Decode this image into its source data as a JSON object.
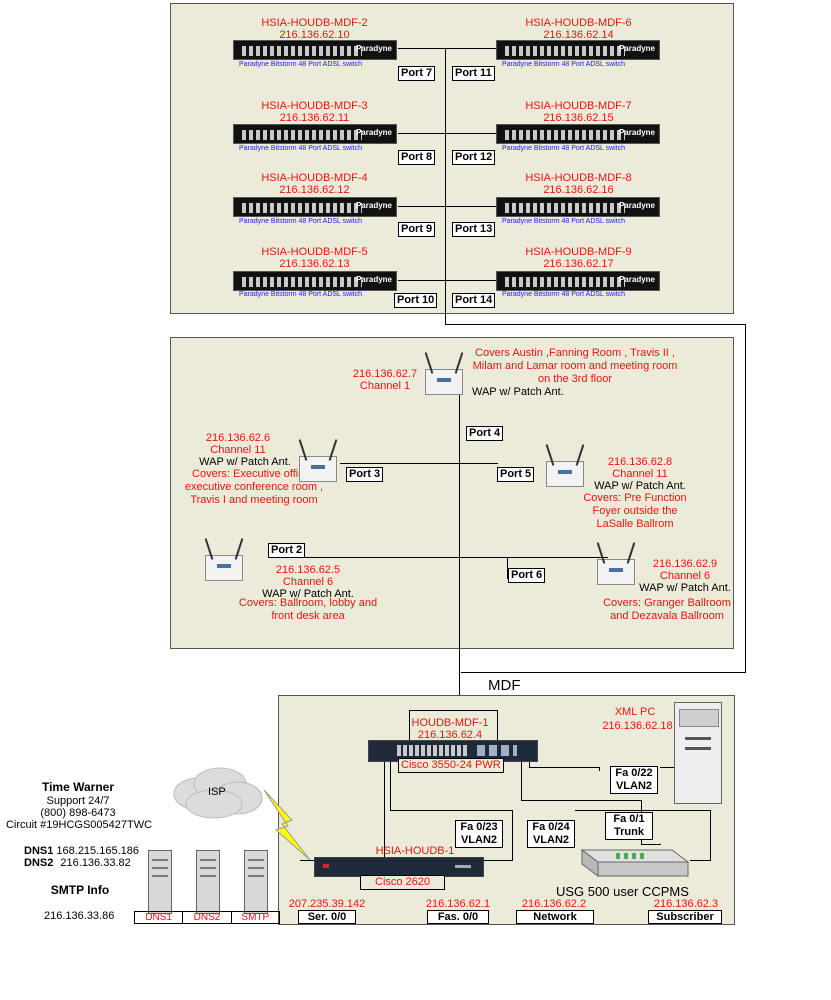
{
  "top_panel": {
    "switches": [
      {
        "name": "HSIA-HOUDB-MDF-2",
        "ip": "216.136.62.10",
        "port": "Port 7"
      },
      {
        "name": "HSIA-HOUDB-MDF-3",
        "ip": "216.136.62.11",
        "port": "Port 8"
      },
      {
        "name": "HSIA-HOUDB-MDF-4",
        "ip": "216.136.62.12",
        "port": "Port 9"
      },
      {
        "name": "HSIA-HOUDB-MDF-5",
        "ip": "216.136.62.13",
        "port": "Port 10"
      },
      {
        "name": "HSIA-HOUDB-MDF-6",
        "ip": "216.136.62.14",
        "port": "Port 11"
      },
      {
        "name": "HSIA-HOUDB-MDF-7",
        "ip": "216.136.62.15",
        "port": "Port 12"
      },
      {
        "name": "HSIA-HOUDB-MDF-8",
        "ip": "216.136.62.16",
        "port": "Port 13"
      },
      {
        "name": "HSIA-HOUDB-MDF-9",
        "ip": "216.136.62.17",
        "port": "Port 14"
      }
    ],
    "switch_brand": "Paradyne",
    "switch_sublabel": "Paradyne Bitstorm 48 Port ADSL switch"
  },
  "wap_panel": {
    "waps": [
      {
        "ip": "216.136.62.7",
        "channel": "Channel 1",
        "type": "WAP w/ Patch Ant.",
        "covers": "Covers Austin ,Fanning Room , Travis II , Milam and Lamar room and meeting room on the 3rd floor",
        "port": "Port 4"
      },
      {
        "ip": "216.136.62.6",
        "channel": "Channel 11",
        "type": "WAP w/ Patch Ant.",
        "covers": "Covers: Executive office , executive conference room , Travis I and meeting room",
        "port": "Port 3"
      },
      {
        "ip": "216.136.62.8",
        "channel": "Channel 11",
        "type": "WAP w/ Patch Ant.",
        "covers": "Covers:  Pre Function Foyer outside the LaSalle Ballrom",
        "port": "Port 5"
      },
      {
        "ip": "216.136.62.5",
        "channel": "Channel 6",
        "type": "WAP w/ Patch Ant.",
        "covers": "Covers: Ballroom, lobby and front desk area",
        "port": "Port 2"
      },
      {
        "ip": "216.136.62.9",
        "channel": "Channel 6",
        "type": "WAP w/ Patch Ant.",
        "covers": "Covers: Granger Ballroom and Dezavala Ballroom",
        "port": "Port 6"
      }
    ]
  },
  "mdf_panel": {
    "title": "MDF",
    "core_switch": {
      "name": "HOUDB-MDF-1",
      "ip": "216.136.62.4",
      "model": "Cisco 3550-24 PWR"
    },
    "xml_pc": {
      "name": "XML PC",
      "ip": "216.136.62.18"
    },
    "links": [
      {
        "port": "Fa 0/22",
        "vlan": "VLAN2"
      },
      {
        "port": "Fa 0/23",
        "vlan": "VLAN2"
      },
      {
        "port": "Fa 0/24",
        "vlan": "VLAN2"
      },
      {
        "port": "Fa 0/1",
        "vlan": "Trunk"
      }
    ],
    "router": {
      "name": "HSIA-HOUDB-1",
      "model": "Cisco 2620"
    },
    "ccpms": "USG 500 user CCPMS",
    "bottom": [
      {
        "ip": "207.235.39.142",
        "label": "Ser. 0/0"
      },
      {
        "ip": "216.136.62.1",
        "label": "Fas. 0/0"
      },
      {
        "ip": "216.136.62.2",
        "label": "Network"
      },
      {
        "ip": "216.136.62.3",
        "label": "Subscriber"
      }
    ]
  },
  "isp": {
    "cloud_label": "ISP",
    "provider": "Time Warner",
    "support": "Support 24/7",
    "phone": "(800) 898-6473",
    "circuit": "Circuit #19HCGS005427TWC",
    "dns1_label": "DNS1",
    "dns1": "168.215.165.186",
    "dns2_label": "DNS2",
    "dns2": "216.136.33.82",
    "smtp_title": "SMTP Info",
    "smtp_ip": "216.136.33.86",
    "servers": [
      "DNS1",
      "DNS2",
      "SMTP"
    ]
  },
  "colors": {
    "panel": "#ecead8",
    "label_red": "#e8150f",
    "sublabel_blue": "#1a1aff",
    "lightning": "#ffff00"
  }
}
